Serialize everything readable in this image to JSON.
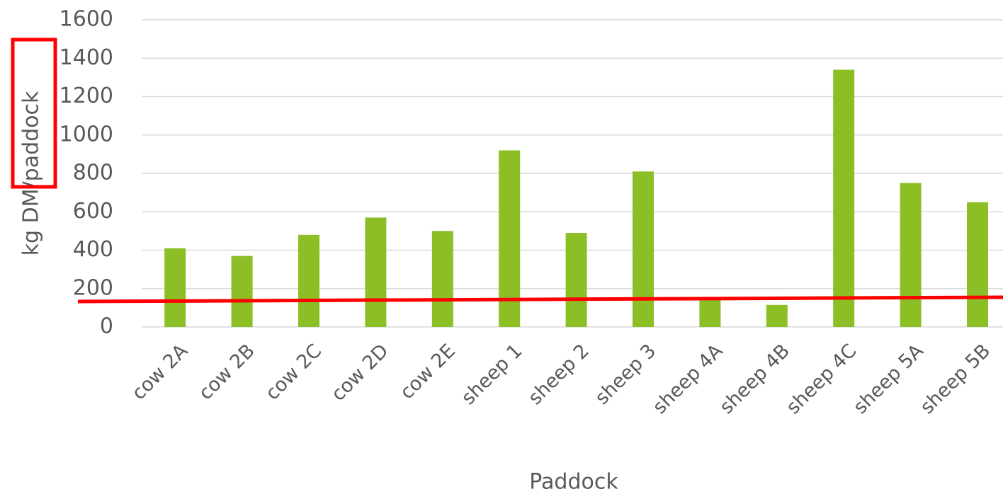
{
  "chart_data": {
    "type": "bar",
    "x_label": "Paddock",
    "y_label": "kg DM/paddock",
    "categories": [
      "cow 2A",
      "cow 2B",
      "cow 2C",
      "cow 2D",
      "cow 2E",
      "sheep 1",
      "sheep 2",
      "sheep 3",
      "sheep 4A",
      "sheep 4B",
      "sheep 4C",
      "sheep 5A",
      "sheep 5B"
    ],
    "values": [
      410,
      370,
      480,
      570,
      500,
      920,
      490,
      810,
      150,
      115,
      1340,
      750,
      650
    ],
    "color": "#8cbf26",
    "ylim": [
      0,
      1600
    ],
    "yticks": [
      0,
      200,
      400,
      600,
      800,
      1000,
      1200,
      1400,
      1600
    ],
    "grid": true
  }
}
